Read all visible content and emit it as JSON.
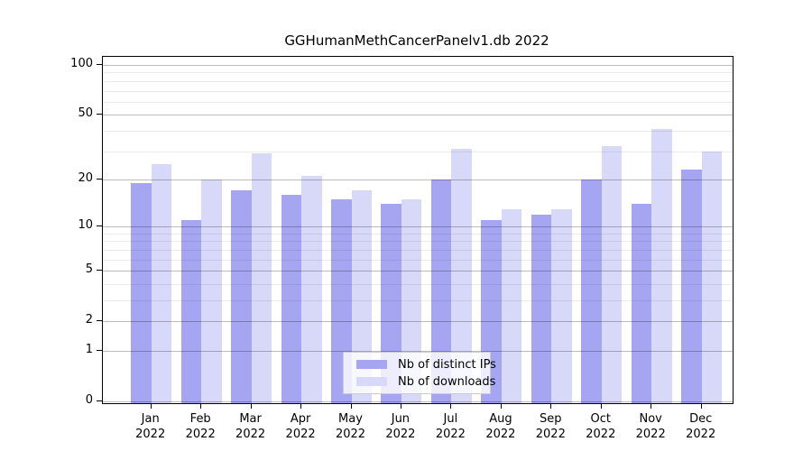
{
  "title": "GGHumanMethCancerPanelv1.db 2022",
  "chart_data": {
    "type": "bar",
    "title": "GGHumanMethCancerPanelv1.db 2022",
    "xlabel": "",
    "ylabel": "",
    "scale": "log10(1+y)",
    "grid": true,
    "legend_position": "bottom-center",
    "categories": [
      "Jan",
      "Feb",
      "Mar",
      "Apr",
      "May",
      "Jun",
      "Jul",
      "Aug",
      "Sep",
      "Oct",
      "Nov",
      "Dec"
    ],
    "year_label": "2022",
    "series": [
      {
        "name": "Nb of distinct IPs",
        "color": "#a5a5f2",
        "values": [
          19,
          11,
          17,
          16,
          15,
          14,
          20,
          11,
          12,
          20,
          14,
          23
        ]
      },
      {
        "name": "Nb of downloads",
        "color": "#d8d8f8",
        "values": [
          25,
          20,
          29,
          21,
          17,
          15,
          31,
          13,
          13,
          32,
          41,
          30
        ]
      }
    ],
    "y_major_ticks": [
      0,
      1,
      2,
      5,
      10,
      20,
      50,
      100
    ],
    "y_minor_gridlines": [
      3,
      4,
      6,
      7,
      8,
      9,
      30,
      40,
      60,
      70,
      80,
      90
    ],
    "ylim": [
      0,
      112
    ]
  }
}
